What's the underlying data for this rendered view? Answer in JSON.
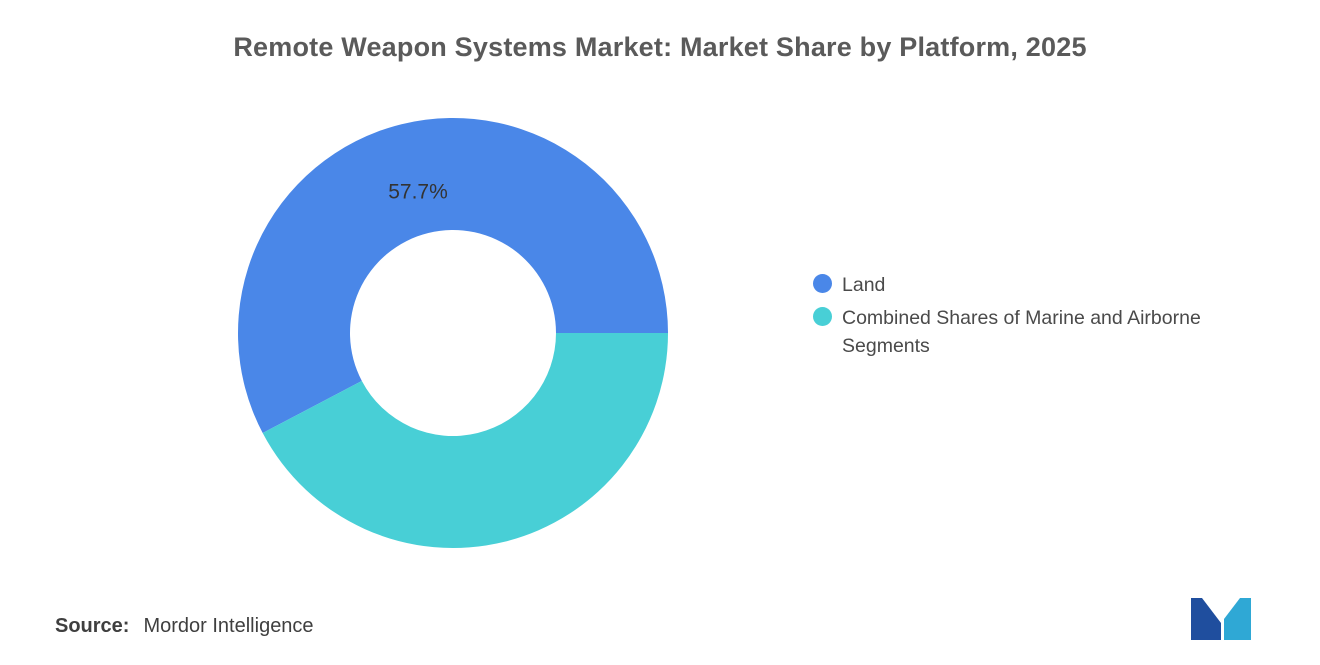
{
  "chart_data": {
    "type": "pie",
    "donut": true,
    "title": "Remote Weapon Systems Market: Market Share by Platform, 2025",
    "legend_position": "right",
    "start_angle_deg": 0,
    "direction": "counterclockwise",
    "slices": [
      {
        "label": "Land",
        "value": 57.7,
        "color": "#4a87e8",
        "data_label": "57.7%"
      },
      {
        "label": "Combined Shares of Marine and Airborne Segments",
        "value": 42.3,
        "color": "#48cfd6",
        "data_label": ""
      }
    ]
  },
  "legend": {
    "items": [
      {
        "label": "Land",
        "color": "#4a87e8"
      },
      {
        "label": "Combined Shares of Marine and Airborne Segments",
        "color": "#48cfd6"
      }
    ]
  },
  "source": {
    "label": "Source:",
    "value": "Mordor Intelligence"
  },
  "logo": {
    "name": "mordor-intelligence-logo",
    "colors": {
      "dark": "#1f4e9e",
      "light": "#2fa8d5"
    }
  }
}
